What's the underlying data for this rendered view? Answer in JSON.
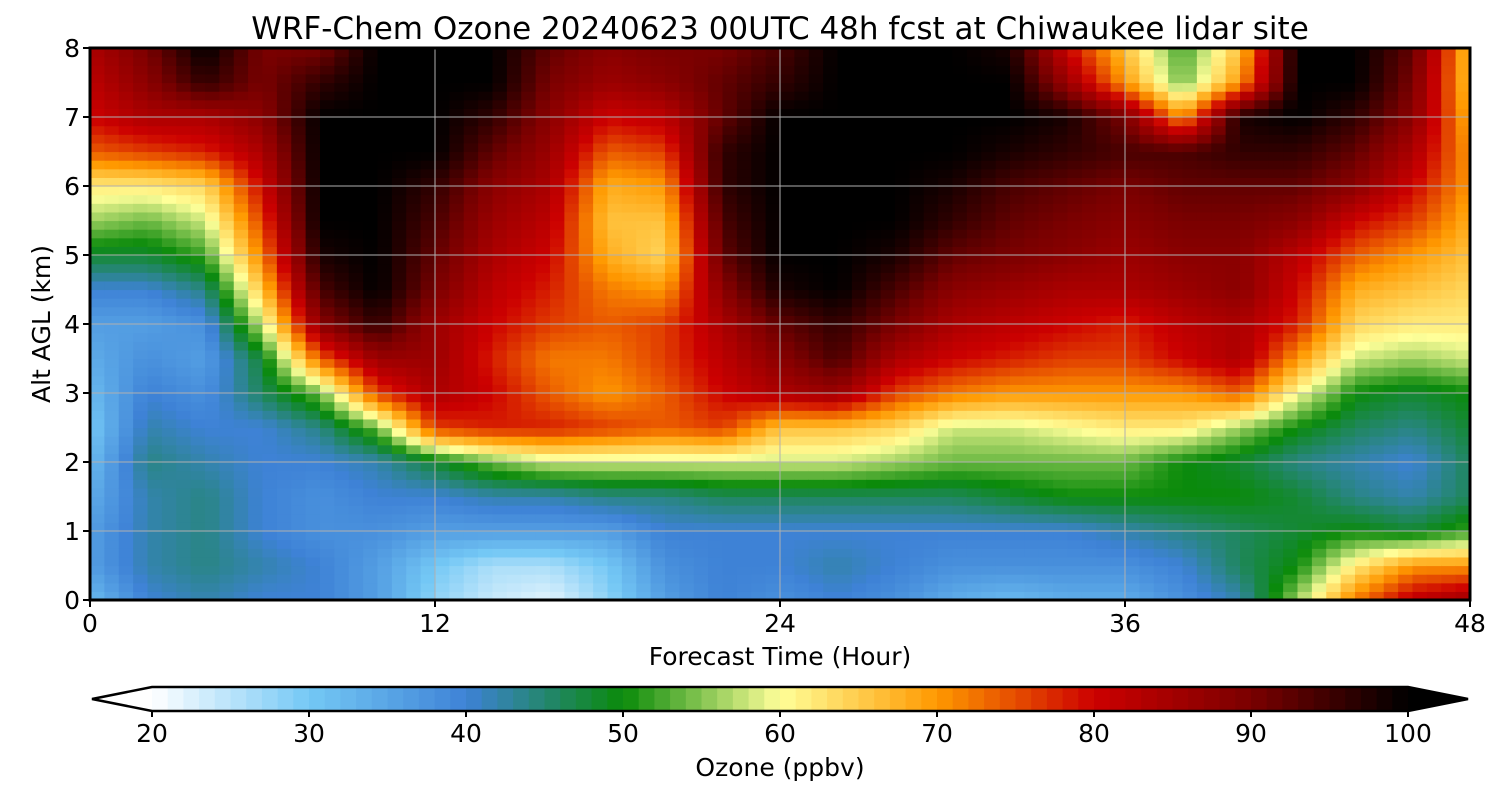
{
  "chart_data": {
    "type": "heatmap",
    "title": "WRF-Chem Ozone  20240623 00UTC 48h fcst at Chiwaukee lidar site",
    "xlabel": "Forecast Time (Hour)",
    "ylabel": "Alt AGL (km)",
    "xlim": [
      0,
      48
    ],
    "ylim": [
      0,
      8
    ],
    "x_ticks": [
      "0",
      "12",
      "24",
      "36",
      "48"
    ],
    "y_ticks": [
      "0",
      "1",
      "2",
      "3",
      "4",
      "5",
      "6",
      "7",
      "8"
    ],
    "grid": true,
    "x_hours": [
      0,
      2,
      4,
      6,
      8,
      10,
      12,
      14,
      16,
      18,
      20,
      22,
      24,
      26,
      28,
      30,
      32,
      34,
      36,
      38,
      40,
      42,
      44,
      46,
      48
    ],
    "y_km": [
      0,
      0.5,
      1,
      1.5,
      2,
      2.5,
      3,
      3.5,
      4,
      4.5,
      5,
      5.5,
      6,
      6.5,
      7,
      7.5,
      8
    ],
    "ozone_ppbv": [
      [
        32,
        40,
        42,
        40,
        40,
        36,
        28,
        24,
        22,
        28,
        36,
        40,
        38,
        40,
        38,
        34,
        32,
        34,
        34,
        38,
        42,
        56,
        72,
        82,
        86
      ],
      [
        36,
        42,
        44,
        42,
        40,
        36,
        30,
        26,
        26,
        30,
        38,
        40,
        40,
        42,
        40,
        38,
        38,
        38,
        38,
        40,
        46,
        50,
        62,
        70,
        70
      ],
      [
        36,
        42,
        44,
        40,
        38,
        38,
        36,
        36,
        36,
        36,
        40,
        40,
        40,
        40,
        40,
        40,
        40,
        40,
        42,
        44,
        46,
        48,
        50,
        48,
        52
      ],
      [
        34,
        42,
        44,
        40,
        38,
        40,
        40,
        42,
        42,
        44,
        44,
        46,
        46,
        46,
        46,
        46,
        48,
        50,
        50,
        50,
        50,
        48,
        44,
        42,
        46
      ],
      [
        32,
        44,
        42,
        40,
        40,
        42,
        48,
        54,
        58,
        58,
        58,
        58,
        58,
        58,
        56,
        54,
        54,
        54,
        54,
        50,
        48,
        44,
        42,
        40,
        46
      ],
      [
        30,
        42,
        40,
        40,
        44,
        54,
        76,
        78,
        78,
        76,
        74,
        76,
        66,
        66,
        64,
        58,
        58,
        60,
        62,
        62,
        56,
        50,
        46,
        44,
        48
      ],
      [
        32,
        40,
        38,
        46,
        54,
        76,
        84,
        80,
        74,
        70,
        74,
        80,
        84,
        86,
        76,
        72,
        70,
        70,
        70,
        70,
        74,
        60,
        50,
        48,
        50
      ],
      [
        34,
        38,
        36,
        48,
        74,
        86,
        86,
        78,
        72,
        72,
        76,
        82,
        88,
        94,
        84,
        80,
        78,
        76,
        76,
        80,
        84,
        70,
        58,
        56,
        58
      ],
      [
        36,
        36,
        38,
        58,
        88,
        96,
        86,
        80,
        76,
        74,
        76,
        84,
        92,
        96,
        90,
        84,
        82,
        80,
        78,
        82,
        84,
        78,
        64,
        62,
        62
      ],
      [
        40,
        40,
        44,
        66,
        94,
        100,
        90,
        82,
        78,
        72,
        70,
        88,
        98,
        100,
        94,
        88,
        86,
        84,
        84,
        86,
        88,
        80,
        68,
        66,
        64
      ],
      [
        48,
        48,
        52,
        72,
        98,
        100,
        92,
        84,
        80,
        68,
        64,
        92,
        100,
        100,
        98,
        92,
        90,
        88,
        86,
        88,
        88,
        82,
        74,
        70,
        66
      ],
      [
        56,
        54,
        58,
        76,
        100,
        100,
        94,
        86,
        82,
        66,
        66,
        94,
        100,
        100,
        100,
        96,
        92,
        90,
        88,
        90,
        90,
        88,
        80,
        76,
        68
      ],
      [
        62,
        62,
        64,
        80,
        100,
        100,
        96,
        88,
        84,
        68,
        70,
        96,
        100,
        100,
        100,
        98,
        94,
        92,
        90,
        92,
        92,
        92,
        88,
        80,
        70
      ],
      [
        74,
        76,
        78,
        84,
        100,
        100,
        100,
        92,
        86,
        74,
        76,
        96,
        100,
        100,
        100,
        100,
        98,
        96,
        94,
        94,
        96,
        96,
        92,
        84,
        70
      ],
      [
        80,
        84,
        84,
        88,
        100,
        100,
        100,
        96,
        88,
        80,
        82,
        92,
        100,
        100,
        100,
        100,
        100,
        98,
        90,
        70,
        98,
        100,
        96,
        88,
        68
      ],
      [
        82,
        88,
        96,
        90,
        96,
        100,
        100,
        100,
        90,
        86,
        88,
        92,
        96,
        100,
        100,
        100,
        100,
        86,
        70,
        54,
        70,
        100,
        100,
        90,
        66
      ],
      [
        84,
        90,
        100,
        90,
        90,
        100,
        100,
        100,
        92,
        88,
        90,
        90,
        94,
        100,
        100,
        100,
        98,
        80,
        66,
        52,
        66,
        100,
        100,
        92,
        66
      ]
    ],
    "colorbar": {
      "label": "Ozone  (ppbv)",
      "range": [
        20,
        100
      ],
      "ticks": [
        "20",
        "30",
        "40",
        "50",
        "60",
        "70",
        "80",
        "90",
        "100"
      ],
      "extend": "both",
      "colors": [
        "#ffffff",
        "#74c8f5",
        "#3e82d6",
        "#0a8a0a",
        "#ffff99",
        "#ff9900",
        "#cc0000",
        "#7a0000",
        "#000000"
      ]
    }
  }
}
